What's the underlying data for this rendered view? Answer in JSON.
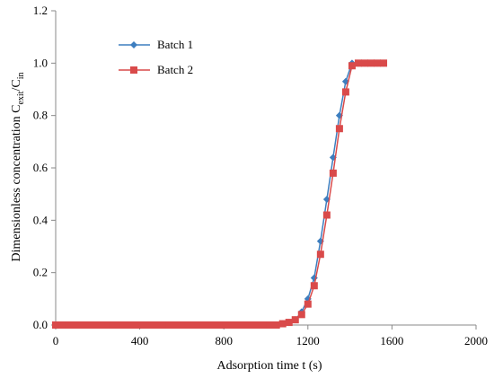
{
  "chart_data": {
    "type": "line",
    "xlabel": "Adsorption time t (s)",
    "ylabel": {
      "main": "Dimensionless concentration C",
      "sub1": "exit",
      "mid": "/C",
      "sub2": "in"
    },
    "xlim": [
      0,
      2000
    ],
    "ylim": [
      0,
      1.2
    ],
    "xticks": [
      0,
      400,
      800,
      1200,
      1600,
      2000
    ],
    "yticks": [
      0.0,
      0.2,
      0.4,
      0.6,
      0.8,
      1.0,
      1.2
    ],
    "ytick_labels": [
      "0.0",
      "0.2",
      "0.4",
      "0.6",
      "0.8",
      "1.0",
      "1.2"
    ],
    "grid": false,
    "legend_position": "top-left",
    "series": [
      {
        "name": "Batch 1",
        "color": "#3d7ebf",
        "marker": "diamond",
        "x": [
          0,
          30,
          60,
          90,
          120,
          150,
          180,
          210,
          240,
          270,
          300,
          330,
          360,
          390,
          420,
          450,
          480,
          510,
          540,
          570,
          600,
          630,
          660,
          690,
          720,
          750,
          780,
          810,
          840,
          870,
          900,
          930,
          960,
          990,
          1020,
          1050,
          1080,
          1110,
          1140,
          1170,
          1200,
          1230,
          1260,
          1290,
          1320,
          1350,
          1380,
          1410,
          1440,
          1470,
          1500,
          1530,
          1560
        ],
        "y": [
          0,
          0,
          0,
          0,
          0,
          0,
          0,
          0,
          0,
          0,
          0,
          0,
          0,
          0,
          0,
          0,
          0,
          0,
          0,
          0,
          0,
          0,
          0,
          0,
          0,
          0,
          0,
          0,
          0,
          0,
          0,
          0,
          0,
          0,
          0,
          0,
          0.005,
          0.01,
          0.02,
          0.05,
          0.1,
          0.18,
          0.32,
          0.48,
          0.64,
          0.8,
          0.93,
          1.0,
          1.0,
          1.0,
          1.0,
          1.0,
          1.0
        ]
      },
      {
        "name": "Batch 2",
        "color": "#d94a4a",
        "marker": "square",
        "x": [
          0,
          30,
          60,
          90,
          120,
          150,
          180,
          210,
          240,
          270,
          300,
          330,
          360,
          390,
          420,
          450,
          480,
          510,
          540,
          570,
          600,
          630,
          660,
          690,
          720,
          750,
          780,
          810,
          840,
          870,
          900,
          930,
          960,
          990,
          1020,
          1050,
          1080,
          1110,
          1140,
          1170,
          1200,
          1230,
          1260,
          1290,
          1320,
          1350,
          1380,
          1410,
          1440,
          1470,
          1500,
          1530,
          1560
        ],
        "y": [
          0,
          0,
          0,
          0,
          0,
          0,
          0,
          0,
          0,
          0,
          0,
          0,
          0,
          0,
          0,
          0,
          0,
          0,
          0,
          0,
          0,
          0,
          0,
          0,
          0,
          0,
          0,
          0,
          0,
          0,
          0,
          0,
          0,
          0,
          0,
          0,
          0.005,
          0.01,
          0.02,
          0.04,
          0.08,
          0.15,
          0.27,
          0.42,
          0.58,
          0.75,
          0.89,
          0.99,
          1.0,
          1.0,
          1.0,
          1.0,
          1.0
        ]
      }
    ]
  }
}
